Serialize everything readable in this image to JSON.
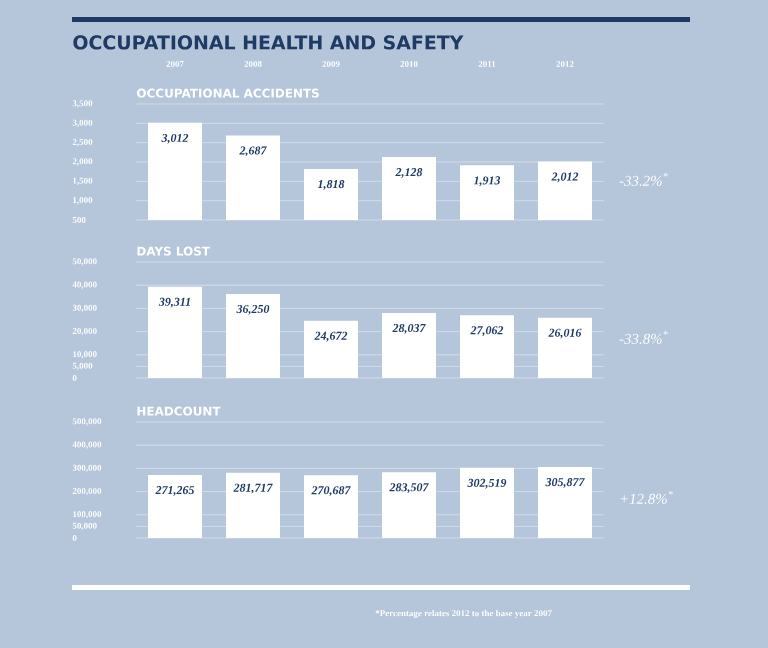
{
  "chart_data": [
    {
      "type": "bar",
      "title": "OCCUPATIONAL HEALTH AND SAFETY",
      "subtitle": "OCCUPATIONAL ACCIDENTS",
      "categories": [
        "2007",
        "2008",
        "2009",
        "2010",
        "2011",
        "2012"
      ],
      "values": [
        3012,
        2687,
        1818,
        2128,
        1913,
        2012
      ],
      "value_labels": [
        "3,012",
        "2,687",
        "1,818",
        "2,128",
        "1,913",
        "2,012"
      ],
      "color": "#ffffff",
      "ylim": [
        500,
        3500
      ],
      "yticks": [
        {
          "value": 500,
          "label": "500"
        },
        {
          "value": 1000,
          "label": "1,000"
        },
        {
          "value": 1500,
          "label": "1,500"
        },
        {
          "value": 2000,
          "label": "2,000"
        },
        {
          "value": 2500,
          "label": "2,500"
        },
        {
          "value": 3000,
          "label": "3,000"
        },
        {
          "value": 3500,
          "label": "3,500"
        }
      ],
      "grid": "y",
      "annotations": [
        "-33.2%$^{*}$"
      ]
    },
    {
      "type": "bar",
      "subtitle": "DAYS LOST",
      "categories": [
        "2007",
        "2008",
        "2009",
        "2010",
        "2011",
        "2012"
      ],
      "values": [
        39311,
        36250,
        24672,
        28037,
        27062,
        26016
      ],
      "value_labels": [
        "39,311",
        "36,250",
        "24,672",
        "28,037",
        "27,062",
        "26,016"
      ],
      "color": "#ffffff",
      "ylim": [
        0,
        50000
      ],
      "yticks": [
        0,
        {
          "value": 5000,
          "label": "5,000"
        },
        {
          "value": 10000,
          "label": "10,000"
        },
        {
          "value": 20000,
          "label": "20,000"
        },
        {
          "value": 30000,
          "label": "30,000"
        },
        {
          "value": 40000,
          "label": "40,000"
        },
        {
          "value": 50000,
          "label": "50,000"
        }
      ],
      "grid": "y",
      "tick_labels": "y",
      "annotations": [
        "-33.8%$^{*}$"
      ]
    },
    {
      "type": "bar",
      "subtitle": "HEADCOUNT",
      "categories": [
        "2007",
        "2008",
        "2009",
        "2010",
        "2011",
        "2012"
      ],
      "values": [
        271265,
        281717,
        270687,
        283507,
        302519,
        305877
      ],
      "value_labels": [
        "271,265",
        "281,717",
        "270,687",
        "283,507",
        "302,519",
        "305,877"
      ],
      "color": "#ffffff",
      "ylim": [
        0,
        500000
      ],
      "yticks": [
        0,
        {
          "value": 50000,
          "label": "50,000"
        },
        {
          "value": 100000,
          "label": "100,000"
        },
        {
          "value": 200000,
          "label": "200,000"
        },
        {
          "value": 300000,
          "label": "300,000"
        },
        {
          "value": 400000,
          "label": "400,000"
        },
        {
          "value": 500000,
          "label": "500,000"
        }
      ],
      "grid": "y",
      "tick_labels": "y",
      "annotations": [
        "+12.8%$^{*}$",
        "*Percentage relates 2012 to the base year 2007"
      ]
    }
  ]
}
